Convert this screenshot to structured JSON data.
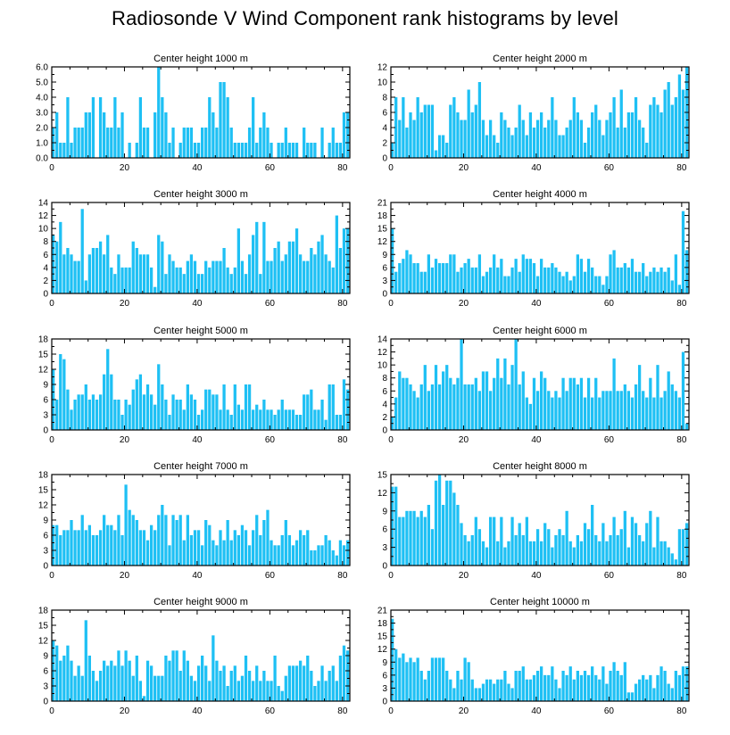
{
  "title": "Radiosonde V Wind Component rank histograms by level",
  "colors": {
    "bar": "#1ec0f4",
    "bar_edge": "#ffffff",
    "axis": "#000000"
  },
  "chart_data": [
    {
      "type": "bar",
      "title": "Center height 1000 m",
      "xlim": [
        0,
        82
      ],
      "xticks": [
        0,
        20,
        40,
        60,
        80
      ],
      "ylim": [
        0,
        6
      ],
      "yticks": [
        0,
        1,
        2,
        3,
        4,
        5,
        6
      ],
      "ytick_labels": [
        "0.0",
        "1.0",
        "2.0",
        "3.0",
        "4.0",
        "5.0",
        "6.0"
      ],
      "values": [
        2,
        3,
        1,
        1,
        4,
        1,
        2,
        2,
        2,
        3,
        3,
        4,
        0,
        4,
        3,
        2,
        2,
        4,
        2,
        3,
        0,
        1,
        0,
        1,
        4,
        2,
        2,
        0,
        3,
        6,
        4,
        3,
        1,
        2,
        0,
        1,
        2,
        2,
        2,
        1,
        1,
        2,
        2,
        4,
        3,
        2,
        5,
        5,
        4,
        2,
        1,
        1,
        1,
        1,
        2,
        4,
        1,
        2,
        3,
        2,
        1,
        0,
        1,
        1,
        2,
        1,
        1,
        1,
        0,
        2,
        1,
        1,
        1,
        0,
        2,
        0,
        1,
        2,
        1,
        1,
        3,
        3
      ]
    },
    {
      "type": "bar",
      "title": "Center height 2000 m",
      "xlim": [
        0,
        82
      ],
      "xticks": [
        0,
        20,
        40,
        60,
        80
      ],
      "ylim": [
        0,
        12
      ],
      "yticks": [
        0,
        2,
        4,
        6,
        8,
        10,
        12
      ],
      "ytick_labels": [
        "0",
        "2",
        "4",
        "6",
        "8",
        "10",
        "12"
      ],
      "values": [
        2,
        8,
        5,
        8,
        4,
        6,
        5,
        8,
        6,
        7,
        7,
        7,
        1,
        3,
        3,
        2,
        7,
        8,
        6,
        5,
        5,
        9,
        6,
        7,
        10,
        5,
        3,
        5,
        3,
        2,
        6,
        5,
        4,
        3,
        4,
        7,
        5,
        3,
        6,
        4,
        5,
        6,
        4,
        5,
        8,
        5,
        3,
        3,
        4,
        5,
        8,
        6,
        5,
        2,
        4,
        6,
        7,
        5,
        3,
        5,
        6,
        8,
        4,
        9,
        4,
        6,
        6,
        8,
        5,
        4,
        2,
        7,
        8,
        7,
        6,
        9,
        10,
        7,
        8,
        11,
        9,
        12
      ]
    },
    {
      "type": "bar",
      "title": "Center height 3000 m",
      "xlim": [
        0,
        82
      ],
      "xticks": [
        0,
        20,
        40,
        60,
        80
      ],
      "ylim": [
        0,
        14
      ],
      "yticks": [
        0,
        2,
        4,
        6,
        8,
        10,
        12,
        14
      ],
      "ytick_labels": [
        "0",
        "2",
        "4",
        "6",
        "8",
        "10",
        "12",
        "14"
      ],
      "values": [
        9,
        8,
        11,
        6,
        7,
        6,
        5,
        5,
        13,
        2,
        6,
        7,
        7,
        8,
        6,
        9,
        4,
        3,
        6,
        4,
        4,
        4,
        8,
        7,
        6,
        6,
        6,
        4,
        1,
        9,
        8,
        3,
        6,
        5,
        4,
        4,
        3,
        5,
        6,
        5,
        3,
        3,
        5,
        4,
        5,
        5,
        5,
        7,
        4,
        3,
        4,
        10,
        5,
        3,
        6,
        9,
        11,
        3,
        11,
        5,
        5,
        7,
        8,
        5,
        6,
        8,
        8,
        10,
        6,
        5,
        5,
        7,
        6,
        8,
        9,
        6,
        5,
        4,
        12,
        7,
        10,
        10
      ]
    },
    {
      "type": "bar",
      "title": "Center height 4000 m",
      "xlim": [
        0,
        82
      ],
      "xticks": [
        0,
        20,
        40,
        60,
        80
      ],
      "ylim": [
        0,
        21
      ],
      "yticks": [
        0,
        3,
        6,
        9,
        12,
        15,
        18,
        21
      ],
      "ytick_labels": [
        "0",
        "3",
        "6",
        "9",
        "12",
        "15",
        "18",
        "21"
      ],
      "values": [
        15,
        5,
        7,
        8,
        10,
        9,
        7,
        7,
        5,
        5,
        9,
        6,
        8,
        7,
        7,
        7,
        9,
        9,
        5,
        6,
        7,
        8,
        6,
        6,
        9,
        4,
        5,
        6,
        9,
        6,
        8,
        4,
        4,
        6,
        8,
        5,
        9,
        8,
        8,
        7,
        4,
        8,
        6,
        6,
        7,
        6,
        5,
        4,
        5,
        3,
        4,
        9,
        8,
        5,
        8,
        6,
        4,
        4,
        2,
        4,
        9,
        10,
        6,
        6,
        7,
        6,
        8,
        5,
        5,
        7,
        4,
        5,
        6,
        5,
        6,
        5,
        6,
        3,
        9,
        2,
        19,
        10
      ]
    },
    {
      "type": "bar",
      "title": "Center height 5000 m",
      "xlim": [
        0,
        82
      ],
      "xticks": [
        0,
        20,
        40,
        60,
        80
      ],
      "ylim": [
        0,
        18
      ],
      "yticks": [
        0,
        3,
        6,
        9,
        12,
        15,
        18
      ],
      "ytick_labels": [
        "0",
        "3",
        "6",
        "9",
        "12",
        "15",
        "18"
      ],
      "values": [
        12,
        6,
        15,
        14,
        8,
        4,
        6,
        7,
        7,
        9,
        6,
        7,
        6,
        7,
        11,
        16,
        11,
        6,
        6,
        3,
        6,
        5,
        8,
        10,
        11,
        7,
        9,
        7,
        5,
        13,
        9,
        6,
        3,
        7,
        6,
        6,
        4,
        9,
        7,
        6,
        3,
        4,
        8,
        8,
        7,
        7,
        4,
        9,
        4,
        3,
        9,
        5,
        4,
        9,
        9,
        4,
        5,
        4,
        6,
        4,
        4,
        3,
        4,
        6,
        4,
        4,
        4,
        3,
        3,
        7,
        7,
        8,
        4,
        4,
        6,
        2,
        9,
        9,
        3,
        3,
        10,
        8
      ]
    },
    {
      "type": "bar",
      "title": "Center height 6000 m",
      "xlim": [
        0,
        82
      ],
      "xticks": [
        0,
        20,
        40,
        60,
        80
      ],
      "ylim": [
        0,
        14
      ],
      "yticks": [
        0,
        2,
        4,
        6,
        8,
        10,
        12,
        14
      ],
      "ytick_labels": [
        "0",
        "2",
        "4",
        "6",
        "8",
        "10",
        "12",
        "14"
      ],
      "values": [
        2,
        5,
        9,
        8,
        8,
        7,
        6,
        5,
        7,
        10,
        6,
        7,
        10,
        7,
        9,
        10,
        8,
        7,
        8,
        14,
        7,
        7,
        7,
        8,
        6,
        9,
        9,
        6,
        8,
        11,
        8,
        11,
        7,
        10,
        14,
        7,
        9,
        5,
        4,
        8,
        6,
        9,
        8,
        6,
        5,
        6,
        5,
        8,
        6,
        8,
        8,
        7,
        8,
        5,
        8,
        5,
        8,
        5,
        6,
        6,
        6,
        11,
        6,
        6,
        7,
        6,
        5,
        7,
        10,
        6,
        5,
        8,
        5,
        10,
        5,
        6,
        9,
        7,
        6,
        5,
        12,
        1
      ]
    },
    {
      "type": "bar",
      "title": "Center height 7000 m",
      "xlim": [
        0,
        82
      ],
      "xticks": [
        0,
        20,
        40,
        60,
        80
      ],
      "ylim": [
        0,
        18
      ],
      "yticks": [
        0,
        3,
        6,
        9,
        12,
        15,
        18
      ],
      "ytick_labels": [
        "0",
        "3",
        "6",
        "9",
        "12",
        "15",
        "18"
      ],
      "values": [
        8,
        8,
        6,
        7,
        7,
        9,
        7,
        7,
        10,
        7,
        8,
        6,
        6,
        7,
        10,
        8,
        8,
        7,
        10,
        6,
        16,
        11,
        10,
        9,
        7,
        7,
        5,
        8,
        7,
        10,
        12,
        10,
        4,
        10,
        9,
        10,
        5,
        10,
        6,
        7,
        7,
        4,
        9,
        8,
        5,
        4,
        7,
        5,
        9,
        5,
        7,
        6,
        8,
        7,
        4,
        7,
        10,
        6,
        9,
        11,
        5,
        4,
        4,
        6,
        9,
        6,
        4,
        5,
        7,
        6,
        7,
        3,
        3,
        4,
        4,
        6,
        5,
        3,
        2,
        5,
        4,
        5
      ]
    },
    {
      "type": "bar",
      "title": "Center height 8000 m",
      "xlim": [
        0,
        82
      ],
      "xticks": [
        0,
        20,
        40,
        60,
        80
      ],
      "ylim": [
        0,
        15
      ],
      "yticks": [
        0,
        3,
        6,
        9,
        12,
        15
      ],
      "ytick_labels": [
        "0",
        "3",
        "6",
        "9",
        "12",
        "15"
      ],
      "values": [
        13,
        13,
        8,
        8,
        9,
        9,
        9,
        8,
        9,
        8,
        10,
        6,
        14,
        15,
        10,
        14,
        14,
        12,
        10,
        7,
        5,
        4,
        5,
        8,
        6,
        4,
        3,
        8,
        8,
        4,
        8,
        3,
        4,
        8,
        5,
        7,
        5,
        8,
        4,
        4,
        6,
        4,
        7,
        6,
        3,
        5,
        6,
        5,
        9,
        4,
        3,
        5,
        4,
        7,
        6,
        10,
        5,
        4,
        7,
        4,
        5,
        8,
        5,
        6,
        9,
        3,
        8,
        7,
        5,
        4,
        7,
        9,
        3,
        8,
        4,
        4,
        3,
        2,
        1,
        6,
        6,
        7
      ]
    },
    {
      "type": "bar",
      "title": "Center height 9000 m",
      "xlim": [
        0,
        82
      ],
      "xticks": [
        0,
        20,
        40,
        60,
        80
      ],
      "ylim": [
        0,
        18
      ],
      "yticks": [
        0,
        3,
        6,
        9,
        12,
        15,
        18
      ],
      "ytick_labels": [
        "0",
        "3",
        "6",
        "9",
        "12",
        "15",
        "18"
      ],
      "values": [
        12,
        11,
        8,
        9,
        11,
        8,
        5,
        7,
        5,
        16,
        9,
        6,
        4,
        6,
        8,
        7,
        8,
        7,
        10,
        7,
        10,
        8,
        5,
        9,
        4,
        1,
        8,
        7,
        5,
        5,
        5,
        9,
        8,
        10,
        10,
        6,
        10,
        8,
        5,
        4,
        7,
        9,
        7,
        4,
        13,
        8,
        6,
        7,
        3,
        6,
        7,
        4,
        5,
        9,
        6,
        4,
        7,
        4,
        6,
        4,
        4,
        9,
        3,
        2,
        5,
        7,
        7,
        7,
        8,
        7,
        9,
        6,
        3,
        4,
        7,
        4,
        6,
        7,
        4,
        9,
        11,
        10
      ]
    },
    {
      "type": "bar",
      "title": "Center height 10000 m",
      "xlim": [
        0,
        82
      ],
      "xticks": [
        0,
        20,
        40,
        60,
        80
      ],
      "ylim": [
        0,
        21
      ],
      "yticks": [
        0,
        3,
        6,
        9,
        12,
        15,
        18,
        21
      ],
      "ytick_labels": [
        "0",
        "3",
        "6",
        "9",
        "12",
        "15",
        "18",
        "21"
      ],
      "values": [
        19,
        12,
        10,
        11,
        9,
        10,
        9,
        10,
        7,
        5,
        7,
        10,
        10,
        10,
        10,
        7,
        5,
        3,
        7,
        5,
        10,
        9,
        5,
        3,
        3,
        4,
        5,
        5,
        4,
        5,
        5,
        7,
        4,
        3,
        7,
        7,
        8,
        5,
        5,
        6,
        7,
        8,
        6,
        6,
        8,
        5,
        3,
        7,
        6,
        8,
        5,
        7,
        6,
        7,
        6,
        8,
        6,
        5,
        8,
        4,
        7,
        9,
        7,
        6,
        9,
        2,
        2,
        4,
        5,
        6,
        5,
        6,
        3,
        6,
        8,
        7,
        4,
        3,
        7,
        6,
        8,
        8
      ]
    }
  ]
}
